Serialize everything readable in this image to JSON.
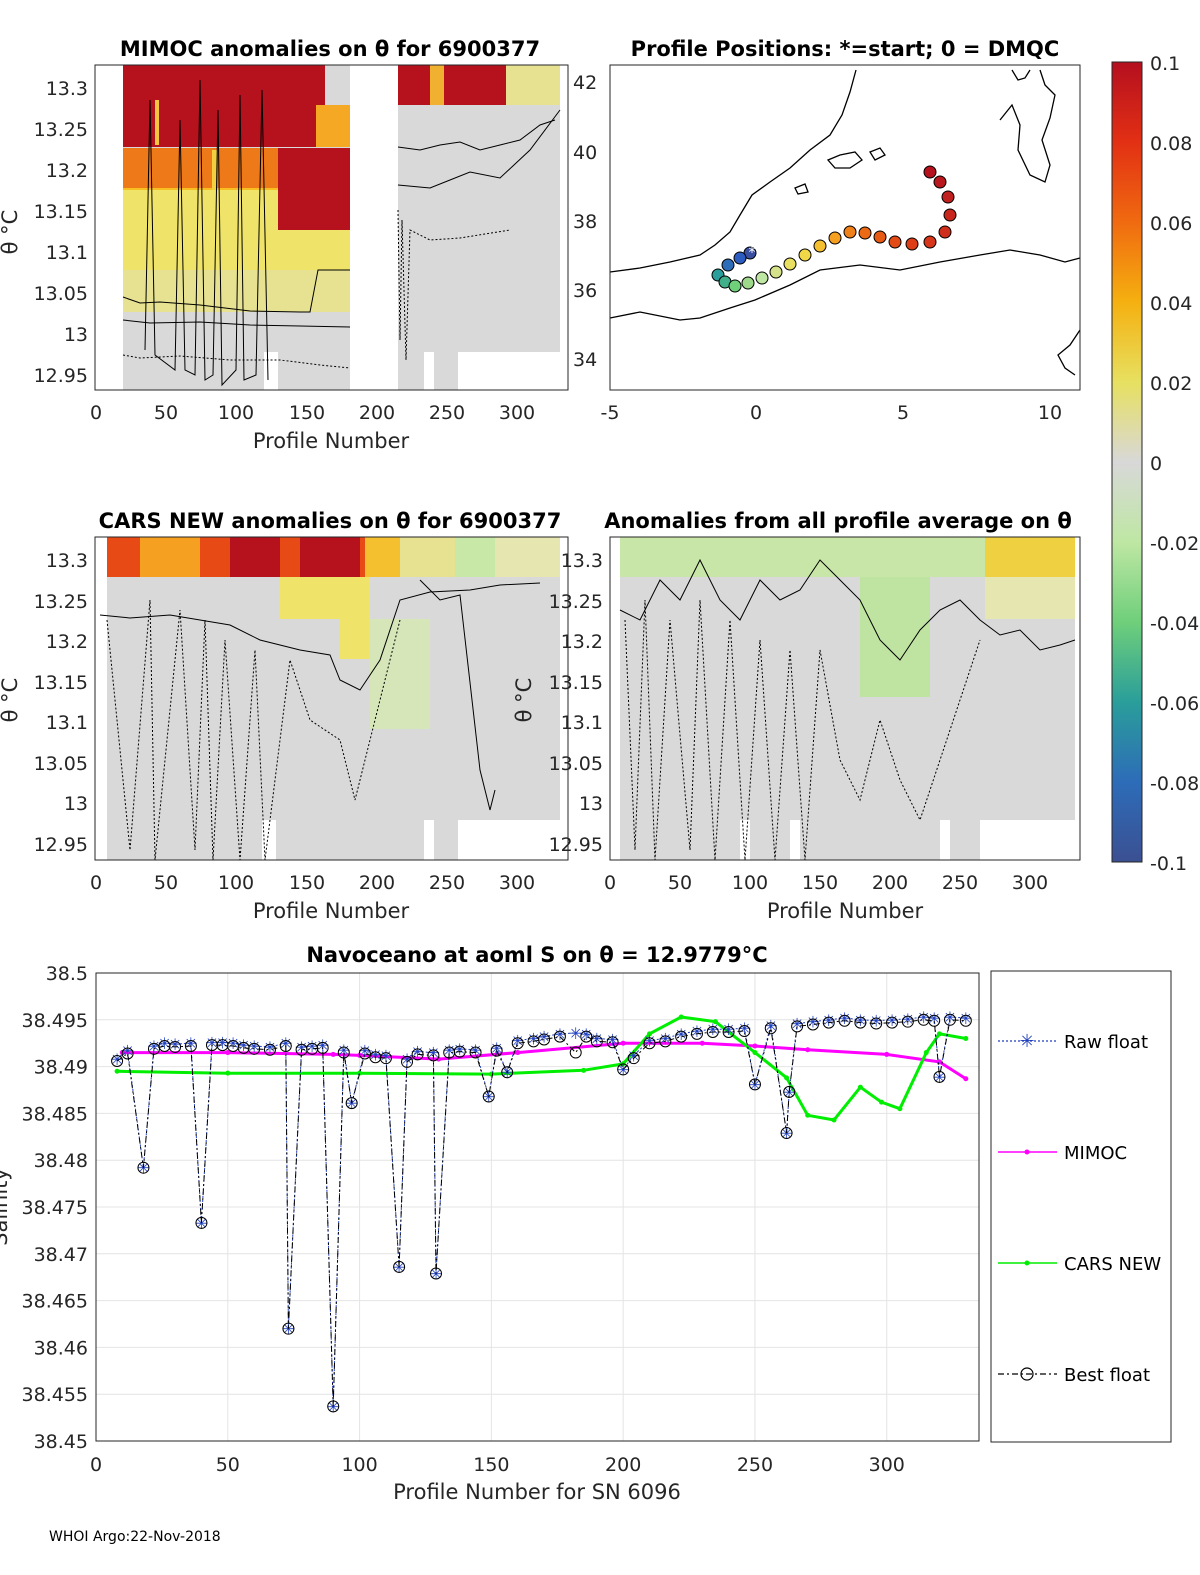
{
  "footer": "WHOI Argo:22-Nov-2018",
  "theta_panels": [
    {
      "id": "mimoc",
      "title": "MIMOC anomalies on θ  for 6900377",
      "xlabel": "Profile Number",
      "ylabel": "θ °C",
      "xticks": [
        "0",
        "50",
        "100",
        "150",
        "200",
        "250",
        "300"
      ],
      "yticks": [
        "13.3",
        "13.25",
        "13.2",
        "13.15",
        "13.1",
        "13.05",
        "13",
        "12.95"
      ]
    },
    {
      "id": "cars",
      "title": "CARS NEW anomalies on θ for 6900377",
      "xlabel": "Profile Number",
      "ylabel": "θ °C",
      "xticks": [
        "0",
        "50",
        "100",
        "150",
        "200",
        "250",
        "300"
      ],
      "yticks": [
        "13.3",
        "13.25",
        "13.2",
        "13.15",
        "13.1",
        "13.05",
        "13",
        "12.95"
      ]
    },
    {
      "id": "allavg",
      "title": "Anomalies from all profile average on θ",
      "xlabel": "Profile Number",
      "ylabel": "θ °C",
      "xticks": [
        "0",
        "50",
        "100",
        "150",
        "200",
        "250",
        "300"
      ],
      "yticks": [
        "13.3",
        "13.25",
        "13.2",
        "13.15",
        "13.1",
        "13.05",
        "13",
        "12.95"
      ]
    }
  ],
  "map_panel": {
    "title": "Profile Positions: *=start; 0 = DMQC",
    "xticks": [
      "-5",
      "0",
      "5",
      "10"
    ],
    "yticks": [
      "42",
      "40",
      "38",
      "36",
      "34"
    ]
  },
  "colorbar": {
    "ticks": [
      "0.1",
      "0.08",
      "0.06",
      "0.04",
      "0.02",
      "0",
      "-0.02",
      "-0.04",
      "-0.06",
      "-0.08",
      "-0.1"
    ]
  },
  "chart_data": {
    "type": "line",
    "title": "Navoceano at aoml S on θ = 12.9779°C",
    "xlabel": "Profile Number for SN 6096",
    "ylabel": "Salinity",
    "xlim": [
      0,
      335
    ],
    "ylim": [
      38.45,
      38.5
    ],
    "xticks": [
      "0",
      "50",
      "100",
      "150",
      "200",
      "250",
      "300"
    ],
    "yticks": [
      "38.5",
      "38.495",
      "38.49",
      "38.485",
      "38.48",
      "38.475",
      "38.47",
      "38.465",
      "38.46",
      "38.455",
      "38.45"
    ],
    "legend": [
      "Raw float",
      "MIMOC",
      "CARS NEW",
      "Best float"
    ],
    "series": [
      {
        "name": "MIMOC",
        "color": "#ff00ff",
        "x": [
          10,
          50,
          90,
          100,
          130,
          160,
          200,
          230,
          250,
          270,
          300,
          320,
          330
        ],
        "y": [
          38.4915,
          38.4915,
          38.4913,
          38.4912,
          38.4908,
          38.4915,
          38.4925,
          38.4925,
          38.4922,
          38.4918,
          38.4913,
          38.4905,
          38.4887
        ]
      },
      {
        "name": "CARS NEW",
        "color": "#00ee00",
        "x": [
          8,
          50,
          100,
          150,
          185,
          200,
          210,
          222,
          235,
          250,
          262,
          270,
          280,
          290,
          298,
          305,
          315,
          320,
          330
        ],
        "y": [
          38.4895,
          38.4893,
          38.4893,
          38.4892,
          38.4896,
          38.4903,
          38.4935,
          38.4953,
          38.4948,
          38.4915,
          38.4888,
          38.4848,
          38.4843,
          38.4878,
          38.4862,
          38.4855,
          38.4915,
          38.4935,
          38.493
        ]
      },
      {
        "name": "Raw float",
        "color": "#1f3fbf",
        "x": [
          8,
          12,
          18,
          22,
          26,
          30,
          36,
          40,
          44,
          48,
          52,
          56,
          60,
          66,
          72,
          73,
          78,
          82,
          86,
          90,
          94,
          97,
          102,
          106,
          110,
          115,
          118,
          122,
          128,
          129,
          134,
          138,
          144,
          149,
          152,
          156,
          160,
          166,
          170,
          176,
          182,
          186,
          190,
          196,
          200,
          204,
          210,
          216,
          222,
          228,
          234,
          240,
          246,
          250,
          256,
          262,
          263,
          266,
          272,
          278,
          284,
          290,
          296,
          302,
          308,
          314,
          318,
          320,
          324,
          330
        ],
        "y": [
          38.4908,
          38.4917,
          38.4792,
          38.4922,
          38.4925,
          38.4924,
          38.4925,
          38.4733,
          38.4926,
          38.4926,
          38.4925,
          38.4923,
          38.4922,
          38.4921,
          38.4925,
          38.462,
          38.4921,
          38.4922,
          38.4923,
          38.4537,
          38.4918,
          38.4861,
          38.4917,
          38.4913,
          38.4912,
          38.4686,
          38.4908,
          38.4916,
          38.4915,
          38.4679,
          38.4918,
          38.4919,
          38.4918,
          38.4868,
          38.492,
          38.4894,
          38.4928,
          38.493,
          38.4932,
          38.4935,
          38.4936,
          38.4935,
          38.493,
          38.4929,
          38.4897,
          38.4912,
          38.4928,
          38.493,
          38.4935,
          38.4938,
          38.494,
          38.494,
          38.4941,
          38.4881,
          38.4944,
          38.4829,
          38.4873,
          38.4946,
          38.4948,
          38.495,
          38.4952,
          38.495,
          38.4949,
          38.495,
          38.4951,
          38.4953,
          38.4952,
          38.4889,
          38.4953,
          38.4952
        ]
      },
      {
        "name": "Best float",
        "color": "#000000",
        "x": [
          8,
          12,
          18,
          22,
          26,
          30,
          36,
          40,
          44,
          48,
          52,
          56,
          60,
          66,
          72,
          73,
          78,
          82,
          86,
          90,
          94,
          97,
          102,
          106,
          110,
          115,
          118,
          122,
          128,
          129,
          134,
          138,
          144,
          149,
          152,
          156,
          160,
          166,
          170,
          176,
          182,
          186,
          190,
          196,
          200,
          204,
          210,
          216,
          222,
          228,
          234,
          240,
          246,
          250,
          256,
          262,
          263,
          266,
          272,
          278,
          284,
          290,
          296,
          302,
          308,
          314,
          318,
          320,
          324,
          330
        ],
        "y": [
          38.4906,
          38.4914,
          38.4792,
          38.4919,
          38.4922,
          38.4921,
          38.4922,
          38.4733,
          38.4923,
          38.4923,
          38.4922,
          38.492,
          38.4919,
          38.4918,
          38.4922,
          38.462,
          38.4918,
          38.4919,
          38.492,
          38.4537,
          38.4915,
          38.4861,
          38.4914,
          38.491,
          38.4909,
          38.4686,
          38.4905,
          38.4913,
          38.4912,
          38.4679,
          38.4915,
          38.4916,
          38.4915,
          38.4868,
          38.4917,
          38.4894,
          38.4925,
          38.4927,
          38.4929,
          38.4932,
          38.4915,
          38.4932,
          38.4927,
          38.4926,
          38.4897,
          38.4909,
          38.4925,
          38.4927,
          38.4932,
          38.4935,
          38.4937,
          38.4937,
          38.4938,
          38.4881,
          38.4941,
          38.4829,
          38.4873,
          38.4943,
          38.4945,
          38.4947,
          38.4949,
          38.4947,
          38.4946,
          38.4947,
          38.4948,
          38.495,
          38.4949,
          38.4889,
          38.495,
          38.4949
        ]
      }
    ]
  }
}
